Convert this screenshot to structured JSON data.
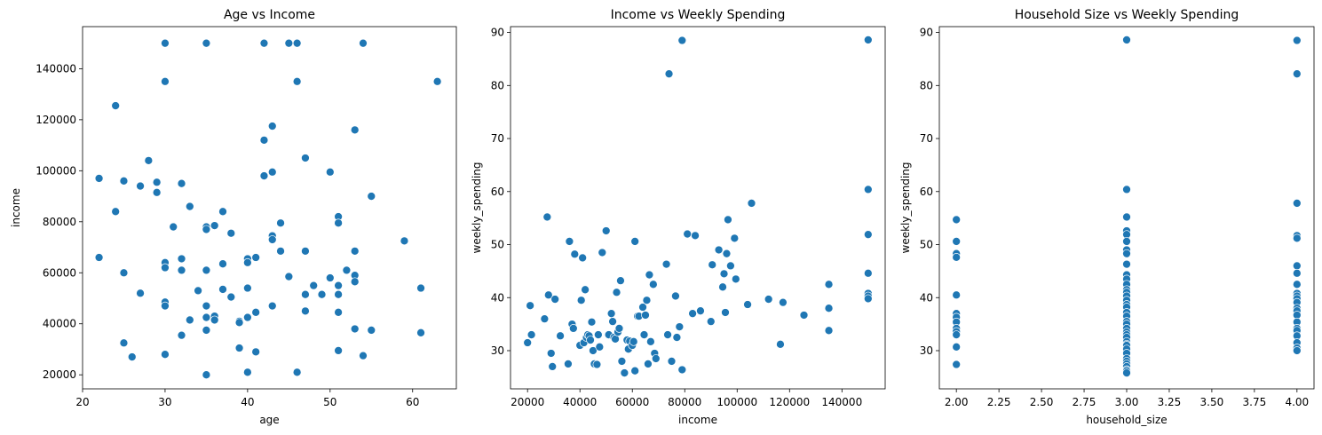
{
  "colors": {
    "marker": "#1f77b4",
    "background": "#ffffff"
  },
  "chart_data": [
    {
      "type": "scatter",
      "title": "Age vs Income",
      "xlabel": "age",
      "ylabel": "income",
      "xlim": [
        20,
        65.3
      ],
      "ylim": [
        14500,
        156500
      ],
      "xticks": [
        20,
        30,
        40,
        50,
        60
      ],
      "yticks": [
        20000,
        40000,
        60000,
        80000,
        100000,
        120000,
        140000
      ],
      "grid": false,
      "points": [
        [
          22,
          97000
        ],
        [
          22,
          66000
        ],
        [
          24,
          125500
        ],
        [
          24,
          84000
        ],
        [
          25,
          96000
        ],
        [
          25,
          60000
        ],
        [
          25,
          32500
        ],
        [
          26,
          27000
        ],
        [
          27,
          94000
        ],
        [
          27,
          52000
        ],
        [
          28,
          104000
        ],
        [
          29,
          95500
        ],
        [
          29,
          91500
        ],
        [
          30,
          150000
        ],
        [
          30,
          135000
        ],
        [
          30,
          64000
        ],
        [
          30,
          62000
        ],
        [
          30,
          48500
        ],
        [
          30,
          47000
        ],
        [
          30,
          28000
        ],
        [
          31,
          78000
        ],
        [
          32,
          95000
        ],
        [
          32,
          65500
        ],
        [
          32,
          61000
        ],
        [
          32,
          35500
        ],
        [
          33,
          86000
        ],
        [
          33,
          41500
        ],
        [
          34,
          53000
        ],
        [
          35,
          150000
        ],
        [
          35,
          78000
        ],
        [
          35,
          77000
        ],
        [
          35,
          61000
        ],
        [
          35,
          47000
        ],
        [
          35,
          42500
        ],
        [
          35,
          37500
        ],
        [
          35,
          20000
        ],
        [
          36,
          78500
        ],
        [
          36,
          43000
        ],
        [
          36,
          41500
        ],
        [
          37,
          84000
        ],
        [
          37,
          63500
        ],
        [
          37,
          53500
        ],
        [
          38,
          75500
        ],
        [
          38,
          50500
        ],
        [
          39,
          41000
        ],
        [
          39,
          40500
        ],
        [
          39,
          30500
        ],
        [
          40,
          65500
        ],
        [
          40,
          64000
        ],
        [
          40,
          54000
        ],
        [
          40,
          42500
        ],
        [
          40,
          21000
        ],
        [
          41,
          66000
        ],
        [
          41,
          44500
        ],
        [
          41,
          29000
        ],
        [
          42,
          150000
        ],
        [
          42,
          112000
        ],
        [
          42,
          98000
        ],
        [
          43,
          117500
        ],
        [
          43,
          99500
        ],
        [
          43,
          74500
        ],
        [
          43,
          73000
        ],
        [
          43,
          47000
        ],
        [
          44,
          79500
        ],
        [
          44,
          68500
        ],
        [
          45,
          150000
        ],
        [
          45,
          58500
        ],
        [
          46,
          150000
        ],
        [
          46,
          135000
        ],
        [
          46,
          21000
        ],
        [
          47,
          105000
        ],
        [
          47,
          68500
        ],
        [
          47,
          51500
        ],
        [
          47,
          45000
        ],
        [
          48,
          55000
        ],
        [
          49,
          51500
        ],
        [
          50,
          99500
        ],
        [
          50,
          58000
        ],
        [
          51,
          82000
        ],
        [
          51,
          79500
        ],
        [
          51,
          55000
        ],
        [
          51,
          51500
        ],
        [
          51,
          44500
        ],
        [
          51,
          29500
        ],
        [
          52,
          61000
        ],
        [
          53,
          116000
        ],
        [
          53,
          68500
        ],
        [
          53,
          59000
        ],
        [
          53,
          56500
        ],
        [
          53,
          38000
        ],
        [
          54,
          150000
        ],
        [
          54,
          27500
        ],
        [
          55,
          90000
        ],
        [
          55,
          37500
        ],
        [
          59,
          72500
        ],
        [
          61,
          54000
        ],
        [
          61,
          36500
        ],
        [
          63,
          135000
        ]
      ]
    },
    {
      "type": "scatter",
      "title": "Income vs Weekly Spending",
      "xlabel": "income",
      "ylabel": "weekly_spending",
      "xlim": [
        13500,
        156500
      ],
      "ylim": [
        22.8,
        91.1
      ],
      "xticks": [
        20000,
        40000,
        60000,
        80000,
        100000,
        120000,
        140000
      ],
      "yticks": [
        30,
        40,
        50,
        60,
        70,
        80,
        90
      ],
      "grid": false,
      "points": [
        [
          20000,
          31.5
        ],
        [
          21000,
          38.5
        ],
        [
          21500,
          33
        ],
        [
          26500,
          36
        ],
        [
          27500,
          55.2
        ],
        [
          28000,
          40.5
        ],
        [
          29000,
          29.5
        ],
        [
          29500,
          27
        ],
        [
          30500,
          39.7
        ],
        [
          32500,
          32.8
        ],
        [
          35500,
          27.5
        ],
        [
          36000,
          50.6
        ],
        [
          37000,
          35
        ],
        [
          37500,
          34.2
        ],
        [
          38000,
          48.2
        ],
        [
          40000,
          31
        ],
        [
          40500,
          39.5
        ],
        [
          41000,
          47.5
        ],
        [
          41500,
          31.5
        ],
        [
          42000,
          41.5
        ],
        [
          42500,
          32.5
        ],
        [
          43000,
          33
        ],
        [
          43500,
          32.8
        ],
        [
          44000,
          32
        ],
        [
          44500,
          35.4
        ],
        [
          45000,
          30
        ],
        [
          45500,
          27.5
        ],
        [
          46500,
          27.4
        ],
        [
          47000,
          33
        ],
        [
          47500,
          30.7
        ],
        [
          48500,
          48.5
        ],
        [
          50000,
          52.6
        ],
        [
          51000,
          33
        ],
        [
          52000,
          37
        ],
        [
          52500,
          35.5
        ],
        [
          53000,
          32.5
        ],
        [
          53500,
          32.2
        ],
        [
          54000,
          41
        ],
        [
          54500,
          33.5
        ],
        [
          55000,
          34.2
        ],
        [
          55500,
          43.2
        ],
        [
          56000,
          28
        ],
        [
          57000,
          25.8
        ],
        [
          58000,
          32
        ],
        [
          58500,
          30.3
        ],
        [
          59000,
          31.8
        ],
        [
          60000,
          31
        ],
        [
          60500,
          31.7
        ],
        [
          61000,
          26.2
        ],
        [
          61000,
          50.6
        ],
        [
          62000,
          36.5
        ],
        [
          62500,
          36.5
        ],
        [
          64000,
          38.2
        ],
        [
          64500,
          33
        ],
        [
          65000,
          36.7
        ],
        [
          65500,
          39.5
        ],
        [
          66000,
          27.5
        ],
        [
          66500,
          44.3
        ],
        [
          67000,
          31.7
        ],
        [
          68000,
          42.5
        ],
        [
          68500,
          29.5
        ],
        [
          69000,
          28.5
        ],
        [
          73000,
          46.3
        ],
        [
          73500,
          33
        ],
        [
          74000,
          82.2
        ],
        [
          75000,
          28
        ],
        [
          76500,
          40.3
        ],
        [
          77000,
          32.5
        ],
        [
          78000,
          34.5
        ],
        [
          79000,
          88.5
        ],
        [
          79000,
          26.4
        ],
        [
          81000,
          52
        ],
        [
          83000,
          37
        ],
        [
          84000,
          51.7
        ],
        [
          86000,
          37.5
        ],
        [
          90000,
          35.5
        ],
        [
          90500,
          46.2
        ],
        [
          93000,
          49
        ],
        [
          94500,
          42
        ],
        [
          95000,
          44.5
        ],
        [
          95500,
          37.2
        ],
        [
          96000,
          48.3
        ],
        [
          96500,
          54.7
        ],
        [
          97500,
          46
        ],
        [
          99000,
          51.2
        ],
        [
          99500,
          43.5
        ],
        [
          104000,
          38.7
        ],
        [
          105500,
          57.8
        ],
        [
          112000,
          39.7
        ],
        [
          116500,
          31.2
        ],
        [
          117500,
          39.1
        ],
        [
          125500,
          36.7
        ],
        [
          135000,
          33.8
        ],
        [
          135000,
          42.5
        ],
        [
          135000,
          38
        ],
        [
          150000,
          88.6
        ],
        [
          150000,
          60.4
        ],
        [
          150000,
          51.9
        ],
        [
          150000,
          44.6
        ],
        [
          150000,
          40.8
        ],
        [
          150000,
          40.3
        ],
        [
          150000,
          39.8
        ]
      ]
    },
    {
      "type": "scatter",
      "title": "Household Size vs Weekly Spending",
      "xlabel": "household_size",
      "ylabel": "weekly_spending",
      "xlim": [
        1.9,
        4.1
      ],
      "ylim": [
        22.8,
        91.1
      ],
      "xticks": [
        2.0,
        2.25,
        2.5,
        2.75,
        3.0,
        3.25,
        3.5,
        3.75,
        4.0
      ],
      "yticks": [
        30,
        40,
        50,
        60,
        70,
        80,
        90
      ],
      "grid": false,
      "points": [
        [
          2,
          54.7
        ],
        [
          2,
          50.6
        ],
        [
          2,
          48.3
        ],
        [
          2,
          47.6
        ],
        [
          2,
          40.5
        ],
        [
          2,
          37
        ],
        [
          2,
          36.3
        ],
        [
          2,
          35.4
        ],
        [
          2,
          34.2
        ],
        [
          2,
          33.6
        ],
        [
          2,
          33
        ],
        [
          2,
          30.7
        ],
        [
          2,
          27.4
        ],
        [
          3,
          88.6
        ],
        [
          3,
          60.4
        ],
        [
          3,
          55.2
        ],
        [
          3,
          52.6
        ],
        [
          3,
          51.9
        ],
        [
          3,
          50.6
        ],
        [
          3,
          49
        ],
        [
          3,
          48.3
        ],
        [
          3,
          46.3
        ],
        [
          3,
          44.3
        ],
        [
          3,
          43.5
        ],
        [
          3,
          42.5
        ],
        [
          3,
          41.5
        ],
        [
          3,
          41
        ],
        [
          3,
          40.3
        ],
        [
          3,
          39.5
        ],
        [
          3,
          38.7
        ],
        [
          3,
          38.2
        ],
        [
          3,
          37.2
        ],
        [
          3,
          36.5
        ],
        [
          3,
          35.5
        ],
        [
          3,
          35
        ],
        [
          3,
          34.2
        ],
        [
          3,
          33.5
        ],
        [
          3,
          33
        ],
        [
          3,
          32.5
        ],
        [
          3,
          31.7
        ],
        [
          3,
          31.2
        ],
        [
          3,
          31
        ],
        [
          3,
          30.3
        ],
        [
          3,
          29.5
        ],
        [
          3,
          28.5
        ],
        [
          3,
          28
        ],
        [
          3,
          27.5
        ],
        [
          3,
          27
        ],
        [
          3,
          26.4
        ],
        [
          3,
          26.2
        ],
        [
          3,
          25.8
        ],
        [
          4,
          88.5
        ],
        [
          4,
          82.2
        ],
        [
          4,
          57.8
        ],
        [
          4,
          51.7
        ],
        [
          4,
          51.2
        ],
        [
          4,
          46
        ],
        [
          4,
          44.6
        ],
        [
          4,
          42.5
        ],
        [
          4,
          40.8
        ],
        [
          4,
          40.3
        ],
        [
          4,
          39.8
        ],
        [
          4,
          39.1
        ],
        [
          4,
          38
        ],
        [
          4,
          37.5
        ],
        [
          4,
          36.7
        ],
        [
          4,
          35.4
        ],
        [
          4,
          34.2
        ],
        [
          4,
          33.8
        ],
        [
          4,
          32.8
        ],
        [
          4,
          31.5
        ],
        [
          4,
          30.5
        ],
        [
          4,
          30
        ]
      ]
    }
  ]
}
